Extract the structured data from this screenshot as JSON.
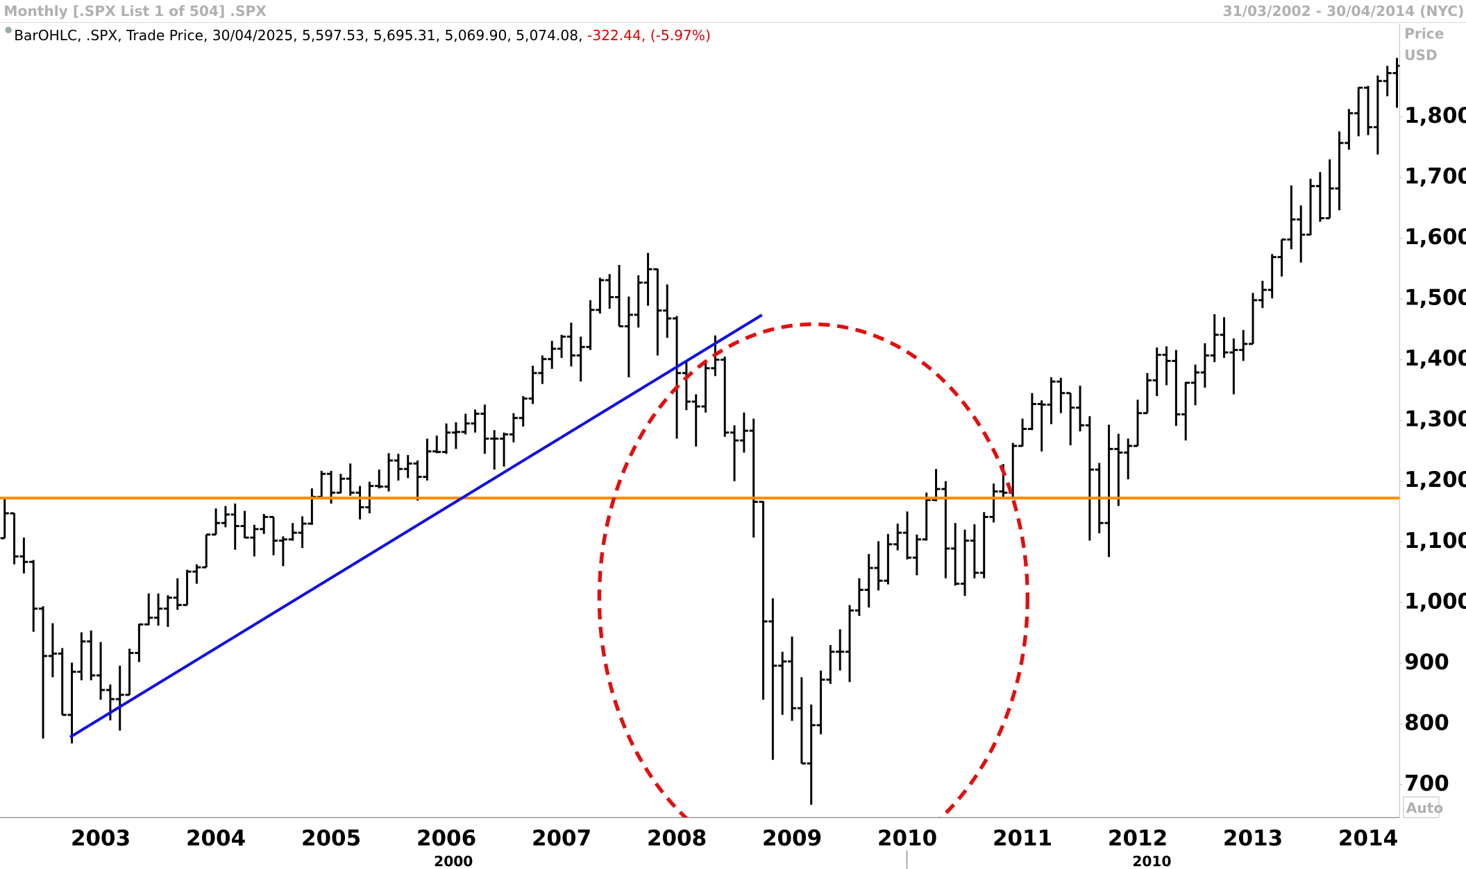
{
  "chart_data": {
    "type": "ohlc",
    "title": "Monthly [.SPX List 1 of 504] .SPX",
    "date_range": "31/03/2002 - 30/04/2014 (NYC)",
    "legend_text": "BarOHLC, .SPX, Trade Price, 30/04/2025, 5,597.53, 5,695.31, 5,069.90, 5,074.08,",
    "legend_change": "-322.44, (-5.97%)",
    "y_axis_label": "Price",
    "y_axis_unit": "USD",
    "y_scale_mode": "Auto",
    "color": "#000000",
    "categories": [
      null,
      null,
      null,
      null,
      null,
      null,
      null,
      null,
      null,
      null,
      "2003",
      null,
      null,
      null,
      null,
      null,
      null,
      null,
      null,
      null,
      null,
      null,
      "2004",
      null,
      null,
      null,
      null,
      null,
      null,
      null,
      null,
      null,
      null,
      null,
      "2005",
      null,
      null,
      null,
      null,
      null,
      null,
      null,
      null,
      null,
      null,
      null,
      "2006",
      null,
      null,
      null,
      null,
      null,
      null,
      null,
      null,
      null,
      null,
      null,
      "2007",
      null,
      null,
      null,
      null,
      null,
      null,
      null,
      null,
      null,
      null,
      null,
      "2008",
      null,
      null,
      null,
      null,
      null,
      null,
      null,
      null,
      null,
      null,
      null,
      "2009",
      null,
      null,
      null,
      null,
      null,
      null,
      null,
      null,
      null,
      null,
      null,
      "2010",
      null,
      null,
      null,
      null,
      null,
      null,
      null,
      null,
      null,
      null,
      null,
      "2011",
      null,
      null,
      null,
      null,
      null,
      null,
      null,
      null,
      null,
      null,
      null,
      "2012",
      null,
      null,
      null,
      null,
      null,
      null,
      null,
      null,
      null,
      null,
      null,
      "2013",
      null,
      null,
      null,
      null,
      null,
      null,
      null,
      null,
      null,
      null,
      null,
      "2014",
      null,
      null,
      null
    ],
    "decade_labels": [
      "2000",
      "2010"
    ],
    "open": [
      1106,
      1147,
      1076,
      1067,
      990,
      912,
      916,
      815,
      886,
      936,
      880,
      856,
      841,
      848,
      917,
      964,
      975,
      990,
      1008,
      996,
      1051,
      1058,
      1112,
      1131,
      1145,
      1126,
      1107,
      1121,
      1141,
      1102,
      1104,
      1115,
      1130,
      1174,
      1212,
      1181,
      1204,
      1181,
      1157,
      1192,
      1191,
      1234,
      1220,
      1229,
      1207,
      1249,
      1248,
      1280,
      1281,
      1295,
      1311,
      1270,
      1270,
      1277,
      1304,
      1336,
      1378,
      1401,
      1418,
      1438,
      1407,
      1421,
      1482,
      1531,
      1503,
      1455,
      1474,
      1527,
      1549,
      1481,
      1468,
      1378,
      1331,
      1323,
      1386,
      1400,
      1280,
      1267,
      1283,
      1166,
      969,
      896,
      903,
      826,
      735,
      798,
      873,
      919,
      919,
      987,
      1021,
      1057,
      1036,
      1096,
      1115,
      1074,
      1104,
      1169,
      1187,
      1089,
      1031,
      1102,
      1049,
      1141,
      1183,
      1181,
      1258,
      1286,
      1327,
      1326,
      1364,
      1345,
      1321,
      1292,
      1219,
      1131,
      1253,
      1247,
      1258,
      1312,
      1366,
      1408,
      1398,
      1310,
      1362,
      1379,
      1407,
      1441,
      1412,
      1416,
      1426,
      1498,
      1515,
      1569,
      1598,
      1631,
      1606,
      1686,
      1633,
      1682,
      1757,
      1806,
      1848,
      1783,
      1859,
      1872
    ],
    "high": [
      1173,
      1147,
      1107,
      1070,
      994,
      966,
      925,
      901,
      951,
      954,
      935,
      865,
      896,
      924,
      965,
      1015,
      1015,
      1012,
      1040,
      1054,
      1063,
      1112,
      1155,
      1159,
      1163,
      1151,
      1128,
      1146,
      1141,
      1109,
      1131,
      1142,
      1188,
      1217,
      1217,
      1212,
      1229,
      1192,
      1199,
      1219,
      1246,
      1245,
      1243,
      1234,
      1270,
      1275,
      1295,
      1297,
      1311,
      1318,
      1326,
      1284,
      1280,
      1312,
      1340,
      1390,
      1407,
      1431,
      1441,
      1461,
      1438,
      1498,
      1535,
      1541,
      1556,
      1504,
      1539,
      1576,
      1550,
      1524,
      1472,
      1396,
      1343,
      1397,
      1440,
      1405,
      1292,
      1313,
      1303,
      1167,
      1007,
      919,
      944,
      877,
      832,
      888,
      930,
      956,
      996,
      1040,
      1080,
      1101,
      1113,
      1130,
      1150,
      1112,
      1181,
      1220,
      1200,
      1131,
      1120,
      1129,
      1149,
      1196,
      1228,
      1263,
      1303,
      1345,
      1333,
      1371,
      1370,
      1345,
      1357,
      1307,
      1230,
      1293,
      1278,
      1270,
      1334,
      1378,
      1420,
      1422,
      1416,
      1363,
      1392,
      1427,
      1475,
      1470,
      1435,
      1449,
      1510,
      1530,
      1574,
      1598,
      1687,
      1654,
      1698,
      1709,
      1730,
      1776,
      1813,
      1849,
      1851,
      1868,
      1884,
      1897
    ],
    "low": [
      1106,
      1063,
      1048,
      952,
      776,
      877,
      815,
      768,
      872,
      872,
      840,
      806,
      789,
      848,
      902,
      963,
      962,
      960,
      988,
      996,
      1031,
      1058,
      1112,
      1124,
      1087,
      1106,
      1076,
      1113,
      1078,
      1060,
      1102,
      1090,
      1128,
      1173,
      1163,
      1180,
      1176,
      1137,
      1147,
      1188,
      1183,
      1201,
      1205,
      1168,
      1201,
      1246,
      1245,
      1253,
      1277,
      1280,
      1245,
      1219,
      1224,
      1264,
      1290,
      1327,
      1360,
      1385,
      1403,
      1389,
      1364,
      1416,
      1476,
      1484,
      1455,
      1371,
      1453,
      1489,
      1407,
      1436,
      1270,
      1317,
      1257,
      1313,
      1373,
      1273,
      1200,
      1247,
      1107,
      840,
      741,
      815,
      805,
      735,
      667,
      783,
      866,
      888,
      869,
      978,
      992,
      1020,
      1030,
      1086,
      1071,
      1045,
      1102,
      1167,
      1040,
      1028,
      1011,
      1040,
      1040,
      1132,
      1173,
      1174,
      1257,
      1284,
      1249,
      1294,
      1312,
      1259,
      1282,
      1102,
      1114,
      1075,
      1159,
      1203,
      1258,
      1312,
      1340,
      1358,
      1291,
      1267,
      1325,
      1354,
      1396,
      1403,
      1343,
      1398,
      1426,
      1485,
      1501,
      1537,
      1582,
      1560,
      1605,
      1627,
      1633,
      1646,
      1746,
      1768,
      1770,
      1738,
      1834,
      1815
    ],
    "close": [
      1147,
      1076,
      1067,
      990,
      912,
      916,
      815,
      886,
      936,
      880,
      856,
      841,
      848,
      917,
      964,
      975,
      990,
      1008,
      996,
      1051,
      1058,
      1112,
      1131,
      1145,
      1126,
      1107,
      1121,
      1141,
      1102,
      1104,
      1115,
      1130,
      1174,
      1212,
      1181,
      1204,
      1181,
      1157,
      1192,
      1191,
      1234,
      1220,
      1229,
      1207,
      1249,
      1248,
      1280,
      1281,
      1295,
      1311,
      1270,
      1270,
      1277,
      1304,
      1336,
      1378,
      1401,
      1418,
      1438,
      1407,
      1421,
      1482,
      1531,
      1503,
      1455,
      1474,
      1527,
      1549,
      1481,
      1468,
      1378,
      1331,
      1323,
      1386,
      1400,
      1280,
      1267,
      1283,
      1166,
      969,
      896,
      903,
      826,
      735,
      798,
      873,
      919,
      919,
      987,
      1021,
      1057,
      1036,
      1096,
      1115,
      1074,
      1104,
      1169,
      1187,
      1089,
      1031,
      1102,
      1049,
      1141,
      1183,
      1181,
      1258,
      1286,
      1327,
      1326,
      1364,
      1345,
      1321,
      1292,
      1219,
      1131,
      1253,
      1247,
      1258,
      1312,
      1366,
      1408,
      1398,
      1310,
      1362,
      1379,
      1407,
      1441,
      1412,
      1416,
      1426,
      1498,
      1515,
      1569,
      1598,
      1631,
      1606,
      1686,
      1633,
      1682,
      1757,
      1806,
      1848,
      1783,
      1859,
      1872,
      1884
    ],
    "ylim": [
      646,
      1923
    ],
    "yticks": [
      700,
      800,
      900,
      {
        "value": 1000,
        "label": "1,000"
      },
      {
        "value": 1100,
        "label": "1,100"
      },
      {
        "value": 1200,
        "label": "1,200"
      },
      {
        "value": 1300,
        "label": "1,300"
      },
      {
        "value": 1400,
        "label": "1,400"
      },
      {
        "value": 1500,
        "label": "1,500"
      },
      {
        "value": 1600,
        "label": "1,600"
      },
      {
        "value": 1700,
        "label": "1,700"
      },
      {
        "value": 1800,
        "label": "1,800"
      }
    ],
    "grid": false
  }
}
